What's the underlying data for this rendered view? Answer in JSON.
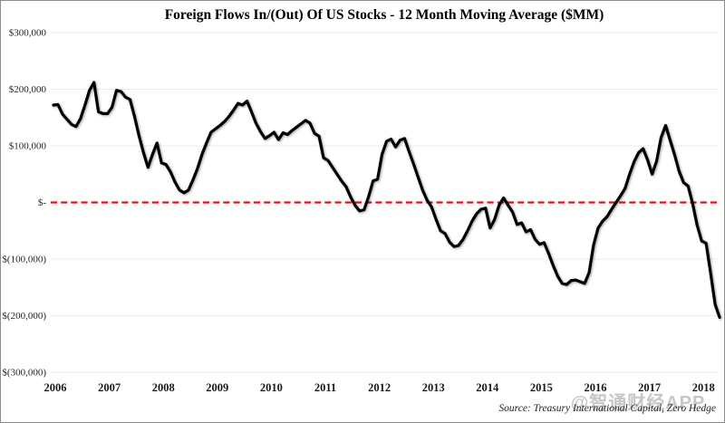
{
  "title": "Foreign Flows In/(Out) Of US Stocks  - 12 Month Moving Average ($MM)",
  "source_note": "Source: Treasury International Capital, Zero Hedge",
  "watermark": "@智通财经APP",
  "colors": {
    "line": "#000000",
    "zero_line": "#df1021",
    "gridline": "#ebebeb",
    "border": "#8c8c8c"
  },
  "y_axis": {
    "tick_labels": [
      "$300,000",
      "$200,000",
      "$100,000",
      "$-",
      "$(100,000)",
      "$(200,000)",
      "$(300,000)"
    ],
    "tick_values": [
      300000,
      200000,
      100000,
      0,
      -100000,
      -200000,
      -300000
    ]
  },
  "x_axis": {
    "tick_labels": [
      "2006",
      "2007",
      "2008",
      "2009",
      "2010",
      "2011",
      "2012",
      "2013",
      "2014",
      "2015",
      "2016",
      "2017",
      "2018"
    ]
  },
  "chart_data": {
    "type": "line",
    "title": "Foreign Flows In/(Out) Of US Stocks - 12 Month Moving Average ($MM)",
    "xlabel": "",
    "ylabel": "$MM",
    "ylim": [
      -300000,
      300000
    ],
    "grid": "horizontal",
    "zero_reference_line": 0,
    "frequency": "monthly",
    "x_start": "2006-01",
    "x_end": "2018-05",
    "series": [
      {
        "name": "12 Month Moving Average ($MM)",
        "values": [
          172000,
          173000,
          156000,
          147000,
          138000,
          134000,
          148000,
          172000,
          198000,
          212000,
          160000,
          157000,
          157000,
          168000,
          198000,
          196000,
          186000,
          182000,
          152000,
          118000,
          88000,
          62000,
          85000,
          105000,
          70000,
          67000,
          54000,
          36000,
          22000,
          17000,
          22000,
          40000,
          60000,
          85000,
          105000,
          124000,
          130000,
          136000,
          143000,
          152000,
          163000,
          175000,
          172000,
          179000,
          160000,
          140000,
          125000,
          113000,
          118000,
          124000,
          111000,
          123000,
          120000,
          127000,
          133000,
          139000,
          145000,
          140000,
          122000,
          117000,
          79000,
          74000,
          62000,
          50000,
          38000,
          28000,
          10000,
          -5000,
          -15000,
          -13000,
          10000,
          38000,
          41000,
          85000,
          108000,
          112000,
          98000,
          110000,
          113000,
          90000,
          68000,
          45000,
          22000,
          4000,
          -8000,
          -30000,
          -50000,
          -55000,
          -70000,
          -78000,
          -76000,
          -65000,
          -50000,
          -33000,
          -20000,
          -12000,
          -10000,
          -45000,
          -30000,
          -5000,
          8000,
          -5000,
          -17000,
          -39000,
          -36000,
          -52000,
          -48000,
          -65000,
          -74000,
          -71000,
          -90000,
          -111000,
          -130000,
          -143000,
          -145000,
          -138000,
          -137000,
          -140000,
          -143000,
          -124000,
          -75000,
          -45000,
          -33000,
          -25000,
          -12000,
          0,
          12000,
          25000,
          50000,
          72000,
          88000,
          95000,
          75000,
          50000,
          73000,
          115000,
          136000,
          110000,
          84000,
          55000,
          35000,
          29000,
          -2000,
          -40000,
          -68000,
          -72000,
          -125000,
          -180000,
          -203000
        ]
      }
    ]
  }
}
